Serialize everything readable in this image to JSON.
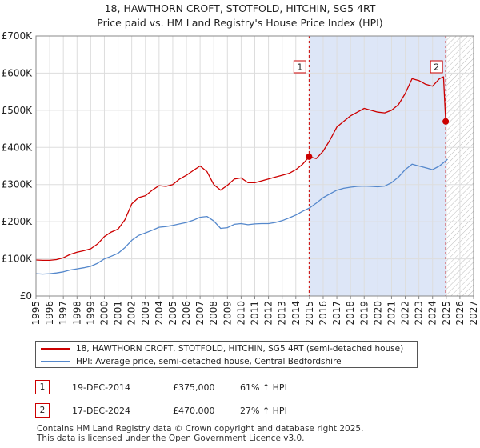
{
  "chart_data": {
    "type": "line",
    "title": "18, HAWTHORN CROFT, STOTFOLD, HITCHIN, SG5 4RT",
    "subtitle": "Price paid vs. HM Land Registry's House Price Index (HPI)",
    "xlim": [
      1995,
      2027
    ],
    "ylim": [
      0,
      700000
    ],
    "x_ticks": [
      1995,
      1996,
      1997,
      1998,
      1999,
      2000,
      2001,
      2002,
      2003,
      2004,
      2005,
      2006,
      2007,
      2008,
      2009,
      2010,
      2011,
      2012,
      2013,
      2014,
      2015,
      2016,
      2017,
      2018,
      2019,
      2020,
      2021,
      2022,
      2023,
      2024,
      2025,
      2026,
      2027
    ],
    "y_ticks": [
      {
        "value": 0,
        "label": "£0"
      },
      {
        "value": 100000,
        "label": "£100K"
      },
      {
        "value": 200000,
        "label": "£200K"
      },
      {
        "value": 300000,
        "label": "£300K"
      },
      {
        "value": 400000,
        "label": "£400K"
      },
      {
        "value": 500000,
        "label": "£500K"
      },
      {
        "value": 600000,
        "label": "£600K"
      },
      {
        "value": 700000,
        "label": "£700K"
      }
    ],
    "grid": true,
    "colors": {
      "price": "#cc0000",
      "hpi": "#5588cc",
      "shade": "#dde6f7",
      "grid": "#dddddd",
      "vline": "#cc0000"
    },
    "series": [
      {
        "name": "18, HAWTHORN CROFT, STOTFOLD, HITCHIN, SG5 4RT (semi-detached house)",
        "color": "#cc0000",
        "x": [
          1995,
          1995.5,
          1996,
          1996.5,
          1997,
          1997.5,
          1998,
          1998.5,
          1999,
          1999.5,
          2000,
          2000.5,
          2001,
          2001.5,
          2002,
          2002.5,
          2003,
          2003.5,
          2004,
          2004.5,
          2005,
          2005.5,
          2006,
          2006.5,
          2007,
          2007.5,
          2008,
          2008.5,
          2009,
          2009.5,
          2010,
          2010.5,
          2011,
          2011.5,
          2012,
          2012.5,
          2013,
          2013.5,
          2014,
          2014.5,
          2014.97,
          2015.5,
          2016,
          2016.5,
          2017,
          2017.5,
          2018,
          2018.5,
          2019,
          2019.5,
          2020,
          2020.5,
          2021,
          2021.5,
          2022,
          2022.5,
          2023,
          2023.5,
          2024,
          2024.5,
          2024.8,
          2024.96,
          2025.1
        ],
        "values": [
          97000,
          96000,
          96000,
          98000,
          103000,
          112000,
          118000,
          122000,
          127000,
          140000,
          160000,
          172000,
          180000,
          205000,
          248000,
          265000,
          270000,
          285000,
          297000,
          295000,
          300000,
          315000,
          325000,
          338000,
          350000,
          335000,
          300000,
          285000,
          298000,
          315000,
          318000,
          305000,
          305000,
          310000,
          315000,
          320000,
          325000,
          330000,
          340000,
          355000,
          375000,
          370000,
          390000,
          420000,
          455000,
          470000,
          485000,
          495000,
          505000,
          500000,
          495000,
          493000,
          500000,
          515000,
          545000,
          585000,
          580000,
          570000,
          565000,
          585000,
          590000,
          470000,
          475000
        ]
      },
      {
        "name": "HPI: Average price, semi-detached house, Central Bedfordshire",
        "color": "#5588cc",
        "x": [
          1995,
          1995.5,
          1996,
          1996.5,
          1997,
          1997.5,
          1998,
          1998.5,
          1999,
          1999.5,
          2000,
          2000.5,
          2001,
          2001.5,
          2002,
          2002.5,
          2003,
          2003.5,
          2004,
          2004.5,
          2005,
          2005.5,
          2006,
          2006.5,
          2007,
          2007.5,
          2008,
          2008.5,
          2009,
          2009.5,
          2010,
          2010.5,
          2011,
          2011.5,
          2012,
          2012.5,
          2013,
          2013.5,
          2014,
          2014.5,
          2015,
          2015.5,
          2016,
          2016.5,
          2017,
          2017.5,
          2018,
          2018.5,
          2019,
          2019.5,
          2020,
          2020.5,
          2021,
          2021.5,
          2022,
          2022.5,
          2023,
          2023.5,
          2024,
          2024.5,
          2025,
          2025.1
        ],
        "values": [
          60000,
          59000,
          60000,
          62000,
          65000,
          70000,
          73000,
          76000,
          80000,
          88000,
          100000,
          107000,
          115000,
          130000,
          150000,
          163000,
          170000,
          177000,
          185000,
          187000,
          190000,
          194000,
          198000,
          204000,
          212000,
          214000,
          202000,
          182000,
          184000,
          193000,
          195000,
          192000,
          194000,
          195000,
          195000,
          198000,
          203000,
          210000,
          218000,
          228000,
          237000,
          250000,
          265000,
          275000,
          285000,
          290000,
          293000,
          295000,
          296000,
          295000,
          294000,
          296000,
          305000,
          320000,
          340000,
          355000,
          350000,
          345000,
          340000,
          350000,
          365000,
          368000
        ]
      }
    ],
    "sales": [
      {
        "marker": "1",
        "date": "19-DEC-2014",
        "x": 2014.97,
        "price": 375000,
        "price_label": "£375,000",
        "hpi_change": "61% ↑ HPI"
      },
      {
        "marker": "2",
        "date": "17-DEC-2024",
        "x": 2024.96,
        "price": 470000,
        "price_label": "£470,000",
        "hpi_change": "27% ↑ HPI"
      }
    ],
    "shaded_region": [
      2014.97,
      2024.96
    ],
    "hatched_from": 2025.0,
    "legend_position": "below"
  },
  "legend": {
    "price_label": "18, HAWTHORN CROFT, STOTFOLD, HITCHIN, SG5 4RT (semi-detached house)",
    "hpi_label": "HPI: Average price, semi-detached house, Central Bedfordshire"
  },
  "footer": {
    "line1": "Contains HM Land Registry data © Crown copyright and database right 2025.",
    "line2": "This data is licensed under the Open Government Licence v3.0."
  }
}
